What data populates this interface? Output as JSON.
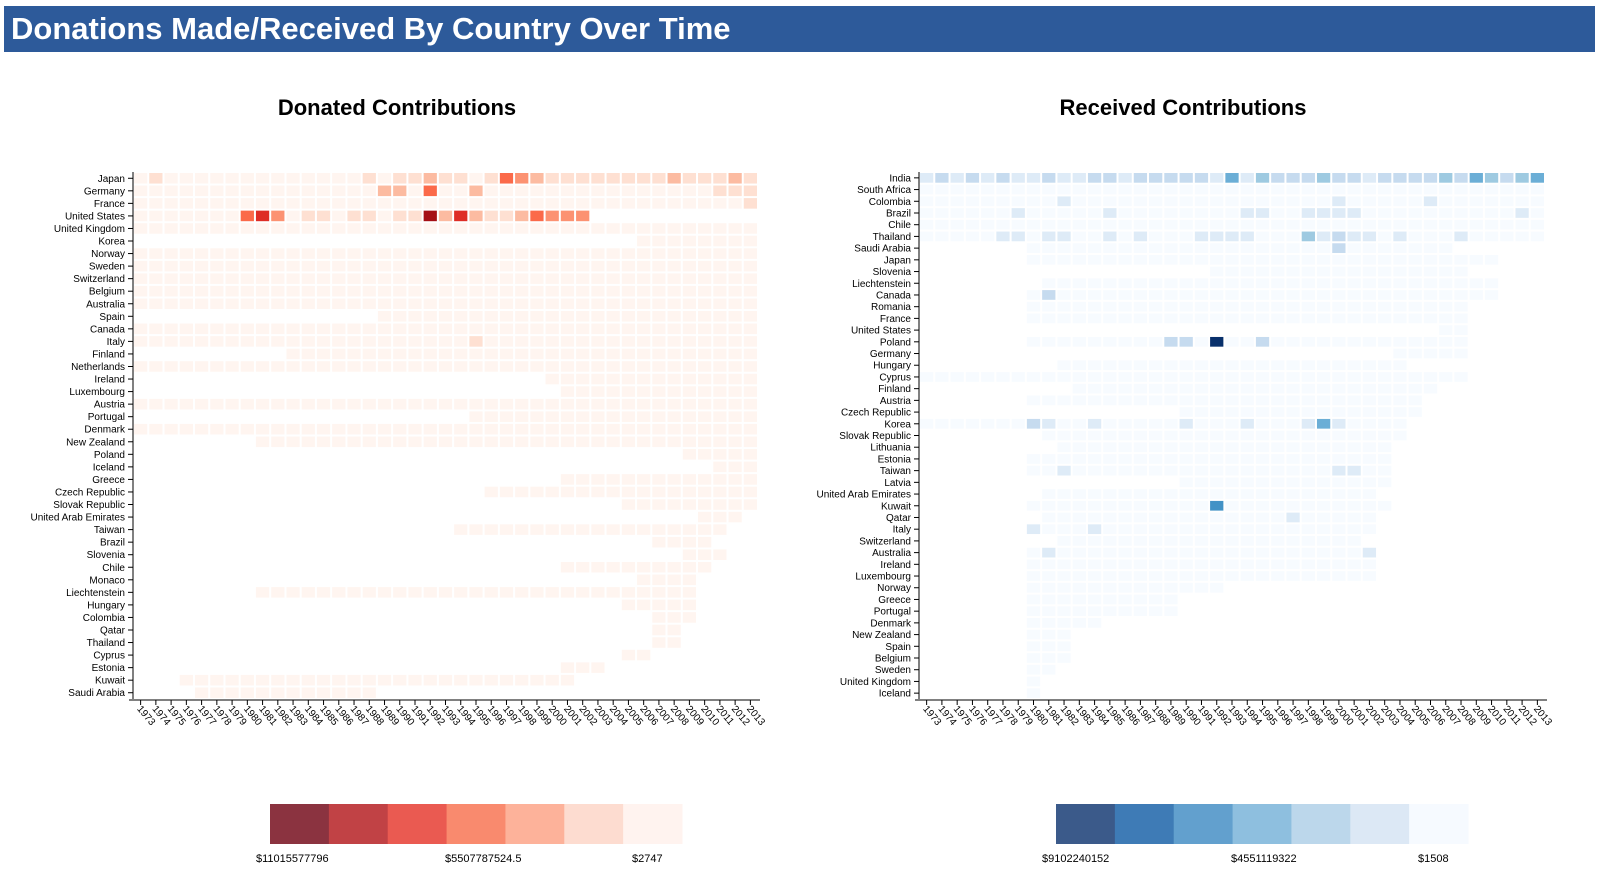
{
  "header": {
    "title": "Donations Made/Received By Country Over Time"
  },
  "chart_data": [
    {
      "type": "heatmap",
      "title": "Donated Contributions",
      "x": [
        "1973",
        "1974",
        "1975",
        "1976",
        "1977",
        "1978",
        "1979",
        "1980",
        "1981",
        "1982",
        "1983",
        "1984",
        "1985",
        "1986",
        "1987",
        "1988",
        "1989",
        "1990",
        "1991",
        "1992",
        "1993",
        "1994",
        "1995",
        "1996",
        "1997",
        "1998",
        "1999",
        "2000",
        "2001",
        "2002",
        "2003",
        "2004",
        "2005",
        "2006",
        "2007",
        "2008",
        "2009",
        "2010",
        "2011",
        "2012",
        "2013"
      ],
      "y": [
        "Japan",
        "Germany",
        "France",
        "United States",
        "United Kingdom",
        "Korea",
        "Norway",
        "Sweden",
        "Switzerland",
        "Belgium",
        "Australia",
        "Spain",
        "Canada",
        "Italy",
        "Finland",
        "Netherlands",
        "Ireland",
        "Luxembourg",
        "Austria",
        "Portugal",
        "Denmark",
        "New Zealand",
        "Poland",
        "Iceland",
        "Greece",
        "Czech Republic",
        "Slovak Republic",
        "United Arab Emirates",
        "Taiwan",
        "Brazil",
        "Slovenia",
        "Chile",
        "Monaco",
        "Liechtenstein",
        "Hungary",
        "Colombia",
        "Qatar",
        "Thailand",
        "Cyprus",
        "Estonia",
        "Kuwait",
        "Saudi Arabia"
      ],
      "color_scheme": [
        "#fff5f0",
        "#fee0d2",
        "#fcbba1",
        "#fc9272",
        "#fb6a4a",
        "#de2d26",
        "#a50f15",
        "#67000d"
      ],
      "legend": {
        "colors": [
          "#8b3340",
          "#c14245",
          "#ea5a51",
          "#f98a6e",
          "#fdb29a",
          "#fddcd0",
          "#fff3ef"
        ],
        "labels": [
          "$11015577796",
          "$5507787524.5",
          "$2747"
        ]
      },
      "rows": [
        {
          "start": 0,
          "end": 40,
          "hot": {
            "1": 1,
            "15": 1,
            "17": 1,
            "18": 1,
            "19": 2,
            "20": 1,
            "21": 1,
            "23": 1,
            "24": 4,
            "25": 3,
            "26": 2,
            "27": 1,
            "28": 1,
            "29": 1,
            "30": 1,
            "31": 1,
            "32": 1,
            "33": 1,
            "34": 1,
            "35": 2,
            "36": 1,
            "37": 1,
            "38": 1,
            "39": 2,
            "40": 1
          }
        },
        {
          "start": 0,
          "end": 40,
          "hot": {
            "16": 2,
            "17": 2,
            "19": 4,
            "22": 2,
            "38": 1,
            "39": 1,
            "40": 1
          }
        },
        {
          "start": 0,
          "end": 40,
          "hot": {
            "40": 1
          }
        },
        {
          "start": 0,
          "end": 29,
          "hot": {
            "7": 4,
            "8": 5,
            "9": 3,
            "11": 1,
            "12": 1,
            "14": 1,
            "15": 1,
            "17": 1,
            "18": 1,
            "19": 6,
            "20": 2,
            "21": 5,
            "22": 2,
            "23": 1,
            "24": 1,
            "25": 2,
            "26": 4,
            "27": 3,
            "28": 3,
            "29": 3
          }
        },
        {
          "start": 0,
          "end": 40,
          "hot": {}
        },
        {
          "start": 33,
          "end": 40,
          "hot": {}
        },
        {
          "start": 0,
          "end": 40,
          "hot": {}
        },
        {
          "start": 0,
          "end": 40,
          "hot": {}
        },
        {
          "start": 0,
          "end": 40,
          "hot": {}
        },
        {
          "start": 0,
          "end": 40,
          "hot": {}
        },
        {
          "start": 0,
          "end": 40,
          "hot": {}
        },
        {
          "start": 16,
          "end": 40,
          "hot": {}
        },
        {
          "start": 0,
          "end": 40,
          "hot": {}
        },
        {
          "start": 0,
          "end": 40,
          "hot": {
            "22": 1
          }
        },
        {
          "start": 10,
          "end": 40,
          "hot": {}
        },
        {
          "start": 0,
          "end": 40,
          "hot": {}
        },
        {
          "start": 27,
          "end": 40,
          "hot": {}
        },
        {
          "start": 28,
          "end": 40,
          "hot": {}
        },
        {
          "start": 0,
          "end": 40,
          "hot": {}
        },
        {
          "start": 22,
          "end": 40,
          "hot": {}
        },
        {
          "start": 0,
          "end": 40,
          "hot": {}
        },
        {
          "start": 8,
          "end": 40,
          "hot": {}
        },
        {
          "start": 36,
          "end": 40,
          "hot": {}
        },
        {
          "start": 38,
          "end": 40,
          "hot": {}
        },
        {
          "start": 28,
          "end": 40,
          "hot": {}
        },
        {
          "start": 23,
          "end": 40,
          "hot": {}
        },
        {
          "start": 32,
          "end": 40,
          "hot": {}
        },
        {
          "start": 37,
          "end": 39,
          "hot": {}
        },
        {
          "start": 21,
          "end": 38,
          "hot": {}
        },
        {
          "start": 34,
          "end": 37,
          "hot": {}
        },
        {
          "start": 36,
          "end": 38,
          "hot": {}
        },
        {
          "start": 28,
          "end": 37,
          "hot": {}
        },
        {
          "start": 33,
          "end": 36,
          "hot": {}
        },
        {
          "start": 8,
          "end": 36,
          "hot": {}
        },
        {
          "start": 32,
          "end": 36,
          "hot": {}
        },
        {
          "start": 34,
          "end": 36,
          "hot": {}
        },
        {
          "start": 34,
          "end": 35,
          "hot": {}
        },
        {
          "start": 34,
          "end": 35,
          "hot": {}
        },
        {
          "start": 32,
          "end": 33,
          "hot": {}
        },
        {
          "start": 28,
          "end": 30,
          "hot": {}
        },
        {
          "start": 3,
          "end": 28,
          "hot": {}
        },
        {
          "start": 4,
          "end": 15,
          "hot": {}
        }
      ]
    },
    {
      "type": "heatmap",
      "title": "Received Contributions",
      "x": [
        "1973",
        "1974",
        "1975",
        "1976",
        "1977",
        "1978",
        "1979",
        "1980",
        "1981",
        "1982",
        "1983",
        "1984",
        "1985",
        "1986",
        "1987",
        "1988",
        "1989",
        "1990",
        "1991",
        "1992",
        "1993",
        "1994",
        "1995",
        "1996",
        "1997",
        "1998",
        "1999",
        "2000",
        "2001",
        "2002",
        "2003",
        "2004",
        "2005",
        "2006",
        "2007",
        "2008",
        "2009",
        "2010",
        "2011",
        "2012",
        "2013"
      ],
      "y": [
        "India",
        "South Africa",
        "Colombia",
        "Brazil",
        "Chile",
        "Thailand",
        "Saudi Arabia",
        "Japan",
        "Slovenia",
        "Liechtenstein",
        "Canada",
        "Romania",
        "France",
        "United States",
        "Poland",
        "Germany",
        "Hungary",
        "Cyprus",
        "Finland",
        "Austria",
        "Czech Republic",
        "Korea",
        "Slovak Republic",
        "Lithuania",
        "Estonia",
        "Taiwan",
        "Latvia",
        "United Arab Emirates",
        "Kuwait",
        "Qatar",
        "Italy",
        "Switzerland",
        "Australia",
        "Ireland",
        "Luxembourg",
        "Norway",
        "Greece",
        "Portugal",
        "Denmark",
        "New Zealand",
        "Spain",
        "Belgium",
        "Sweden",
        "United Kingdom",
        "Iceland"
      ],
      "color_scheme": [
        "#f7fbff",
        "#deebf7",
        "#c6dbef",
        "#9ecae1",
        "#6baed6",
        "#4292c6",
        "#2171b5",
        "#08306b"
      ],
      "legend": {
        "colors": [
          "#3b5a8a",
          "#3e7bb6",
          "#62a0ce",
          "#8ebfdf",
          "#bcd7eb",
          "#dce8f5",
          "#f6faff"
        ],
        "labels": [
          "$9102240152",
          "$4551119322",
          "$1508"
        ]
      },
      "rows": [
        {
          "start": 0,
          "end": 40,
          "hot": {
            "0": 1,
            "1": 2,
            "2": 1,
            "3": 2,
            "4": 1,
            "5": 2,
            "6": 1,
            "7": 1,
            "8": 2,
            "9": 1,
            "10": 1,
            "11": 2,
            "12": 2,
            "13": 1,
            "14": 2,
            "15": 2,
            "16": 2,
            "17": 2,
            "18": 2,
            "19": 1,
            "20": 4,
            "21": 1,
            "22": 3,
            "23": 2,
            "24": 2,
            "25": 2,
            "26": 3,
            "27": 2,
            "28": 2,
            "29": 1,
            "30": 2,
            "31": 2,
            "32": 2,
            "33": 2,
            "34": 3,
            "35": 2,
            "36": 4,
            "37": 3,
            "38": 2,
            "39": 3,
            "40": 4
          }
        },
        {
          "start": 0,
          "end": 40,
          "hot": {}
        },
        {
          "start": 0,
          "end": 40,
          "hot": {
            "9": 1,
            "27": 1,
            "33": 1
          }
        },
        {
          "start": 0,
          "end": 40,
          "hot": {
            "6": 1,
            "12": 1,
            "21": 1,
            "22": 1,
            "25": 1,
            "26": 1,
            "27": 1,
            "28": 1,
            "39": 1
          }
        },
        {
          "start": 0,
          "end": 40,
          "hot": {}
        },
        {
          "start": 0,
          "end": 40,
          "hot": {
            "5": 1,
            "6": 1,
            "8": 1,
            "9": 1,
            "12": 1,
            "14": 1,
            "18": 1,
            "19": 1,
            "20": 1,
            "21": 1,
            "25": 3,
            "26": 1,
            "27": 2,
            "28": 1,
            "29": 1,
            "31": 1,
            "35": 1
          }
        },
        {
          "start": 7,
          "end": 34,
          "hot": {
            "27": 2
          }
        },
        {
          "start": 7,
          "end": 37,
          "hot": {}
        },
        {
          "start": 19,
          "end": 35,
          "hot": {}
        },
        {
          "start": 8,
          "end": 37,
          "hot": {}
        },
        {
          "start": 7,
          "end": 37,
          "hot": {
            "8": 2
          }
        },
        {
          "start": 7,
          "end": 35,
          "hot": {}
        },
        {
          "start": 7,
          "end": 35,
          "hot": {}
        },
        {
          "start": 34,
          "end": 35,
          "hot": {}
        },
        {
          "start": 7,
          "end": 35,
          "hot": {
            "16": 2,
            "17": 2,
            "19": 7,
            "22": 2
          }
        },
        {
          "start": 31,
          "end": 35,
          "hot": {}
        },
        {
          "start": 9,
          "end": 31,
          "hot": {}
        },
        {
          "start": 0,
          "end": 35,
          "hot": {}
        },
        {
          "start": 10,
          "end": 33,
          "hot": {}
        },
        {
          "start": 7,
          "end": 32,
          "hot": {}
        },
        {
          "start": 17,
          "end": 32,
          "hot": {}
        },
        {
          "start": 0,
          "end": 31,
          "hot": {
            "7": 2,
            "8": 1,
            "11": 1,
            "17": 1,
            "21": 1,
            "25": 1,
            "26": 4,
            "27": 1
          }
        },
        {
          "start": 8,
          "end": 31,
          "hot": {}
        },
        {
          "start": 9,
          "end": 30,
          "hot": {}
        },
        {
          "start": 7,
          "end": 30,
          "hot": {}
        },
        {
          "start": 7,
          "end": 30,
          "hot": {
            "9": 1,
            "27": 1,
            "28": 1
          }
        },
        {
          "start": 17,
          "end": 30,
          "hot": {}
        },
        {
          "start": 8,
          "end": 29,
          "hot": {}
        },
        {
          "start": 7,
          "end": 30,
          "hot": {
            "19": 5
          }
        },
        {
          "start": 8,
          "end": 29,
          "hot": {
            "24": 1
          }
        },
        {
          "start": 7,
          "end": 29,
          "hot": {
            "7": 1,
            "11": 1
          }
        },
        {
          "start": 9,
          "end": 28,
          "hot": {}
        },
        {
          "start": 7,
          "end": 29,
          "hot": {
            "8": 1,
            "29": 1
          }
        },
        {
          "start": 7,
          "end": 29,
          "hot": {}
        },
        {
          "start": 7,
          "end": 29,
          "hot": {}
        },
        {
          "start": 7,
          "end": 19,
          "hot": {}
        },
        {
          "start": 7,
          "end": 16,
          "hot": {
            "18": 1
          }
        },
        {
          "start": 7,
          "end": 16,
          "hot": {}
        },
        {
          "start": 7,
          "end": 11,
          "hot": {}
        },
        {
          "start": 7,
          "end": 9,
          "hot": {}
        },
        {
          "start": 7,
          "end": 9,
          "hot": {}
        },
        {
          "start": 7,
          "end": 9,
          "hot": {}
        },
        {
          "start": 7,
          "end": 8,
          "hot": {}
        },
        {
          "start": 7,
          "end": 7,
          "hot": {}
        },
        {
          "start": 7,
          "end": 7,
          "hot": {}
        }
      ]
    }
  ]
}
